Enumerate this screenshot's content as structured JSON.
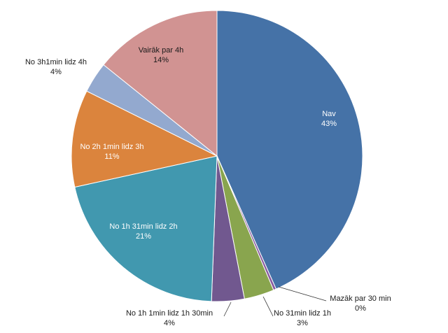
{
  "chart_data": {
    "type": "pie",
    "title": "",
    "slices": [
      {
        "label": "Nav",
        "percent_label": "43%",
        "value": 43,
        "color": "#4572A7"
      },
      {
        "label": "Mazāk par 30 min",
        "percent_label": "0%",
        "value": 0.3,
        "color": "#8A5BA0"
      },
      {
        "label": "No 31min lidz 1h",
        "percent_label": "3%",
        "value": 3.3,
        "color": "#89A54E"
      },
      {
        "label": "No 1h 1min lidz 1h 30min",
        "percent_label": "4%",
        "value": 3.6,
        "color": "#71588F"
      },
      {
        "label": "No 1h 31min lidz 2h",
        "percent_label": "21%",
        "value": 20.8,
        "color": "#4198AF"
      },
      {
        "label": "No 2h 1min lidz 3h",
        "percent_label": "11%",
        "value": 10.7,
        "color": "#DB843D"
      },
      {
        "label": "No 3h1min lidz 4h",
        "percent_label": "4%",
        "value": 3.4,
        "color": "#93A9CF"
      },
      {
        "label": "Vairāk par 4h",
        "percent_label": "14%",
        "value": 14.1,
        "color": "#D19392"
      }
    ]
  }
}
